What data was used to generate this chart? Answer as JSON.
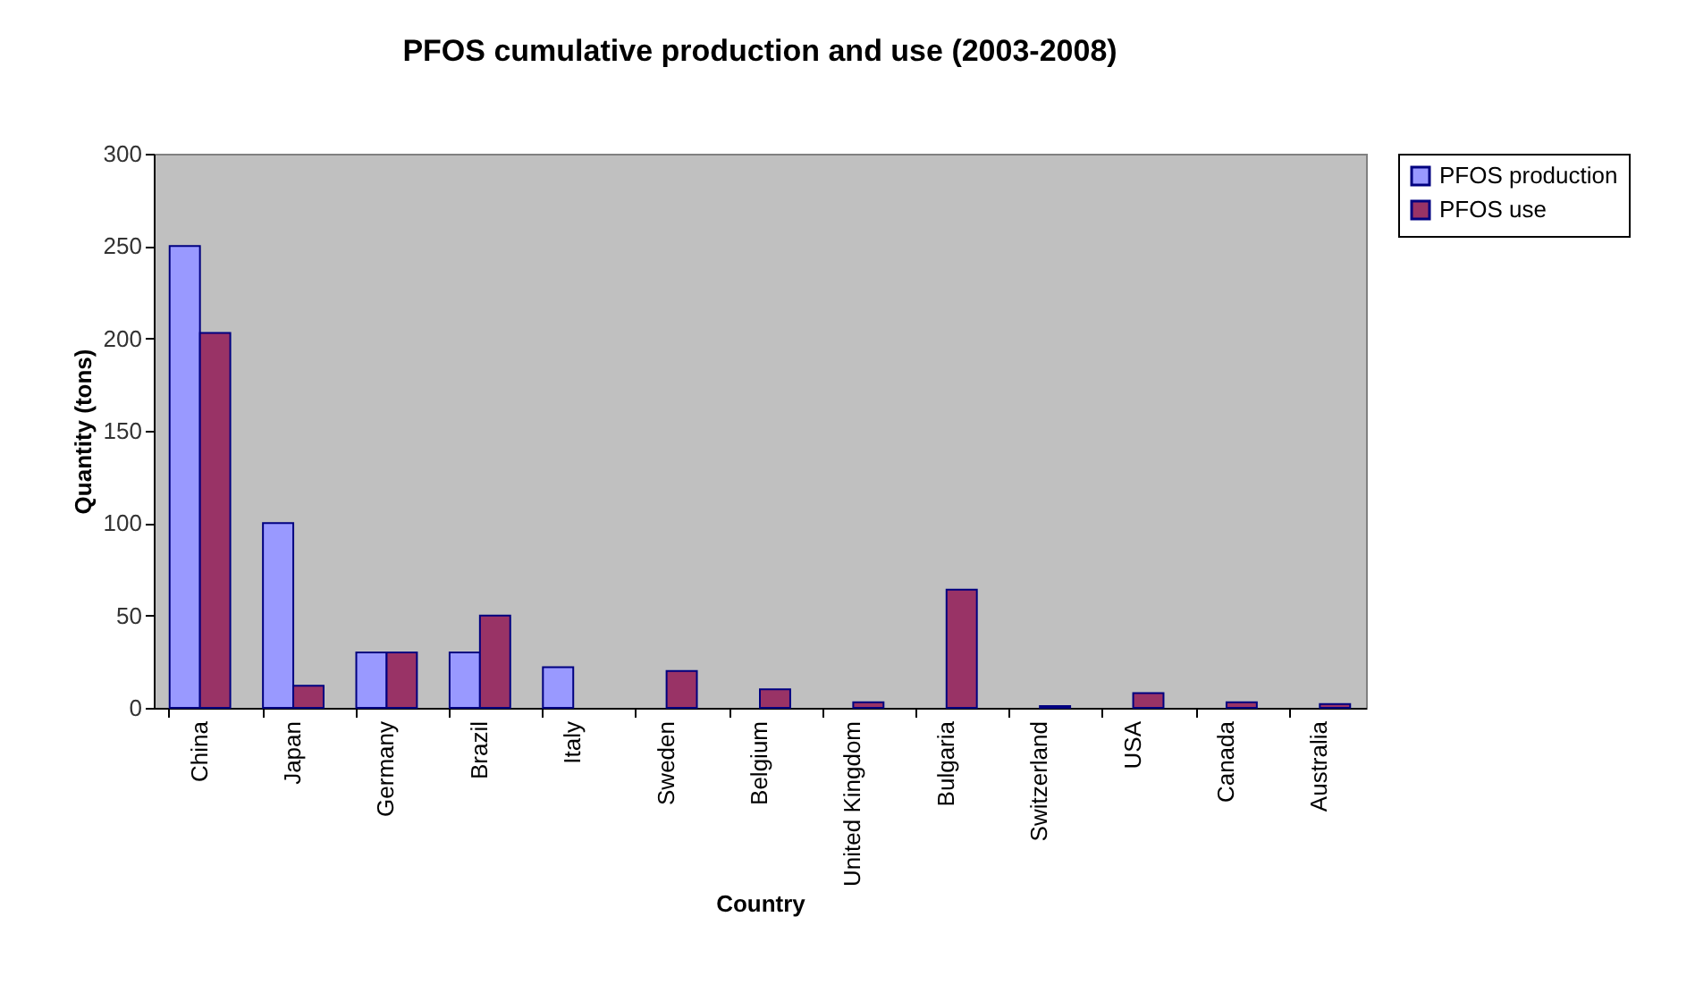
{
  "chart_data": {
    "type": "bar",
    "title": "PFOS cumulative production and use (2003-2008)",
    "xlabel": "Country",
    "ylabel": "Quantity (tons)",
    "categories": [
      "China",
      "Japan",
      "Germany",
      "Brazil",
      "Italy",
      "Sweden",
      "Belgium",
      "United Kingdom",
      "Bulgaria",
      "Switzerland",
      "USA",
      "Canada",
      "Australia"
    ],
    "series": [
      {
        "name": "PFOS production",
        "color": "#9999ff",
        "values": [
          250,
          100,
          30,
          30,
          22,
          null,
          null,
          null,
          null,
          null,
          null,
          null,
          null
        ]
      },
      {
        "name": "PFOS use",
        "color": "#993366",
        "values": [
          203,
          12,
          30,
          50,
          null,
          20,
          10,
          3,
          64,
          1,
          8,
          3,
          2
        ]
      }
    ],
    "ylim": [
      0,
      300
    ],
    "yticks": [
      0,
      50,
      100,
      150,
      200,
      250,
      300
    ],
    "grid": false,
    "legend": "right"
  }
}
